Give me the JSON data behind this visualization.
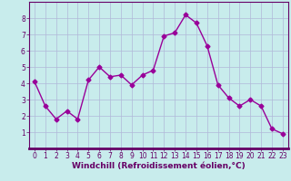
{
  "x": [
    0,
    1,
    2,
    3,
    4,
    5,
    6,
    7,
    8,
    9,
    10,
    11,
    12,
    13,
    14,
    15,
    16,
    17,
    18,
    19,
    20,
    21,
    22,
    23
  ],
  "y": [
    4.1,
    2.6,
    1.8,
    2.3,
    1.8,
    4.2,
    5.0,
    4.4,
    4.5,
    3.9,
    4.5,
    4.8,
    6.9,
    7.1,
    8.2,
    7.7,
    6.3,
    3.9,
    3.1,
    2.6,
    3.0,
    2.6,
    1.2,
    0.9
  ],
  "line_color": "#990099",
  "marker": "D",
  "markersize": 2.5,
  "linewidth": 1.0,
  "xlabel": "Windchill (Refroidissement éolien,°C)",
  "xlabel_fontsize": 6.5,
  "xlabel_color": "#660066",
  "xlim": [
    -0.5,
    23.5
  ],
  "ylim": [
    0,
    9
  ],
  "yticks": [
    1,
    2,
    3,
    4,
    5,
    6,
    7,
    8
  ],
  "xticks": [
    0,
    1,
    2,
    3,
    4,
    5,
    6,
    7,
    8,
    9,
    10,
    11,
    12,
    13,
    14,
    15,
    16,
    17,
    18,
    19,
    20,
    21,
    22,
    23
  ],
  "tick_fontsize": 5.5,
  "tick_color": "#660066",
  "spine_color": "#660066",
  "background_color": "#c8ecec",
  "grid_color": "#b0b8d8",
  "grid_linewidth": 0.5,
  "bottom_spine_linewidth": 2.0,
  "xlabel_fontweight": "bold"
}
